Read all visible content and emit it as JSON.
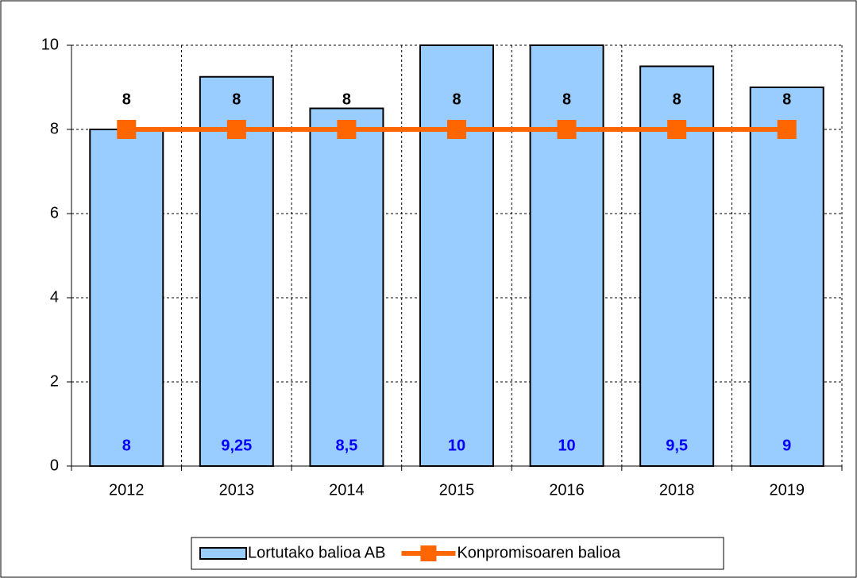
{
  "chart_data": {
    "type": "bar",
    "categories": [
      "2012",
      "2013",
      "2014",
      "2015",
      "2016",
      "2018",
      "2019"
    ],
    "series": [
      {
        "name": "Lortutako balioa AB",
        "type": "bar",
        "color": "#99ccff",
        "values": [
          8,
          9.25,
          8.5,
          10,
          10,
          9.5,
          9
        ],
        "value_labels": [
          "8",
          "9,25",
          "8,5",
          "10",
          "10",
          "9,5",
          "9"
        ]
      },
      {
        "name": "Konpromisoaren balioa",
        "type": "line",
        "color": "#ff6600",
        "values": [
          8,
          8,
          8,
          8,
          8,
          8,
          8
        ]
      }
    ],
    "ylim": [
      0,
      10
    ],
    "yticks": [
      0,
      2,
      4,
      6,
      8,
      10
    ],
    "grid": true,
    "legend": "bottom"
  }
}
